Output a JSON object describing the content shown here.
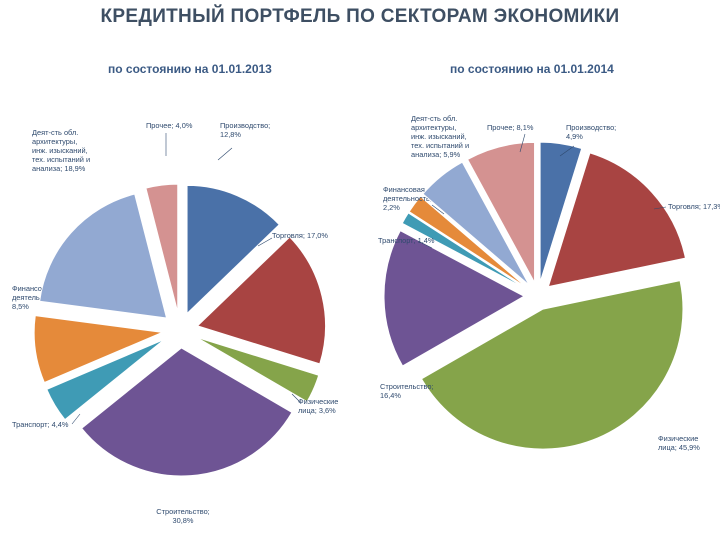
{
  "title": "КРЕДИТНЫЙ ПОРТФЕЛЬ ПО СЕКТОРАМ ЭКОНОМИКИ",
  "chart_data": [
    {
      "type": "pie",
      "title": "по состоянию на 01.01.2013",
      "slices": [
        {
          "name": "Производство",
          "value": 12.8,
          "label": [
            "Производство;",
            "12,8%"
          ],
          "color": "#4a71a8"
        },
        {
          "name": "Торговля",
          "value": 17.0,
          "label": [
            "Торговля; 17,0%"
          ],
          "color": "#a84442"
        },
        {
          "name": "Физические лица",
          "value": 3.6,
          "label": [
            "Физические",
            "лица; 3,6%"
          ],
          "color": "#85a44a"
        },
        {
          "name": "Строительство",
          "value": 30.8,
          "label": [
            "Строительство;",
            "30,8%"
          ],
          "color": "#6e5494"
        },
        {
          "name": "Транспорт",
          "value": 4.4,
          "label": [
            "Транспорт; 4,4%"
          ],
          "color": "#3f9bb5"
        },
        {
          "name": "Финансовая деятельность",
          "value": 8.5,
          "label": [
            "Финансовая",
            "деятельность;",
            "8,5%"
          ],
          "color": "#e58a3a"
        },
        {
          "name": "Деят-сть обл. архитектуры, инж. изысканий, тех. испытаний и анализа",
          "value": 18.9,
          "label": [
            "Деят-сть обл.",
            "архитектуры,",
            "инж. изысканий,",
            "тех. испытаний и",
            "анализа; 18,9%"
          ],
          "color": "#92a9d2"
        },
        {
          "name": "Прочее",
          "value": 4.0,
          "label": [
            "Прочее; 4,0%"
          ],
          "color": "#d49291"
        }
      ]
    },
    {
      "type": "pie",
      "title": "по состоянию на 01.01.2014",
      "slices": [
        {
          "name": "Производство",
          "value": 4.9,
          "label": [
            "Производство;",
            "4,9%"
          ],
          "color": "#4a71a8"
        },
        {
          "name": "Торговля",
          "value": 17.3,
          "label": [
            "Торговля; 17,3%"
          ],
          "color": "#a84442"
        },
        {
          "name": "Физические лица",
          "value": 45.9,
          "label": [
            "Физические",
            "лица; 45,9%"
          ],
          "color": "#85a44a"
        },
        {
          "name": "Строительство",
          "value": 16.4,
          "label": [
            "Строительство;",
            "16,4%"
          ],
          "color": "#6e5494"
        },
        {
          "name": "Транспорт",
          "value": 1.4,
          "label": [
            "Транспорт; 1,4%"
          ],
          "color": "#3f9bb5"
        },
        {
          "name": "Финансовая деятельность",
          "value": 2.2,
          "label": [
            "Финансовая",
            "деятельность;",
            "2,2%"
          ],
          "color": "#e58a3a"
        },
        {
          "name": "Деят-сть обл. архитектуры, инж. изысканий, тех. испытаний и анализа",
          "value": 5.9,
          "label": [
            "Деят-сть обл.",
            "архитектуры,",
            "инж. изысканий,",
            "тех. испытаний и",
            "анализа; 5,9%"
          ],
          "color": "#92a9d2"
        },
        {
          "name": "Прочее",
          "value": 8.1,
          "label": [
            "Прочее; 8,1%"
          ],
          "color": "#d49291"
        }
      ]
    }
  ]
}
